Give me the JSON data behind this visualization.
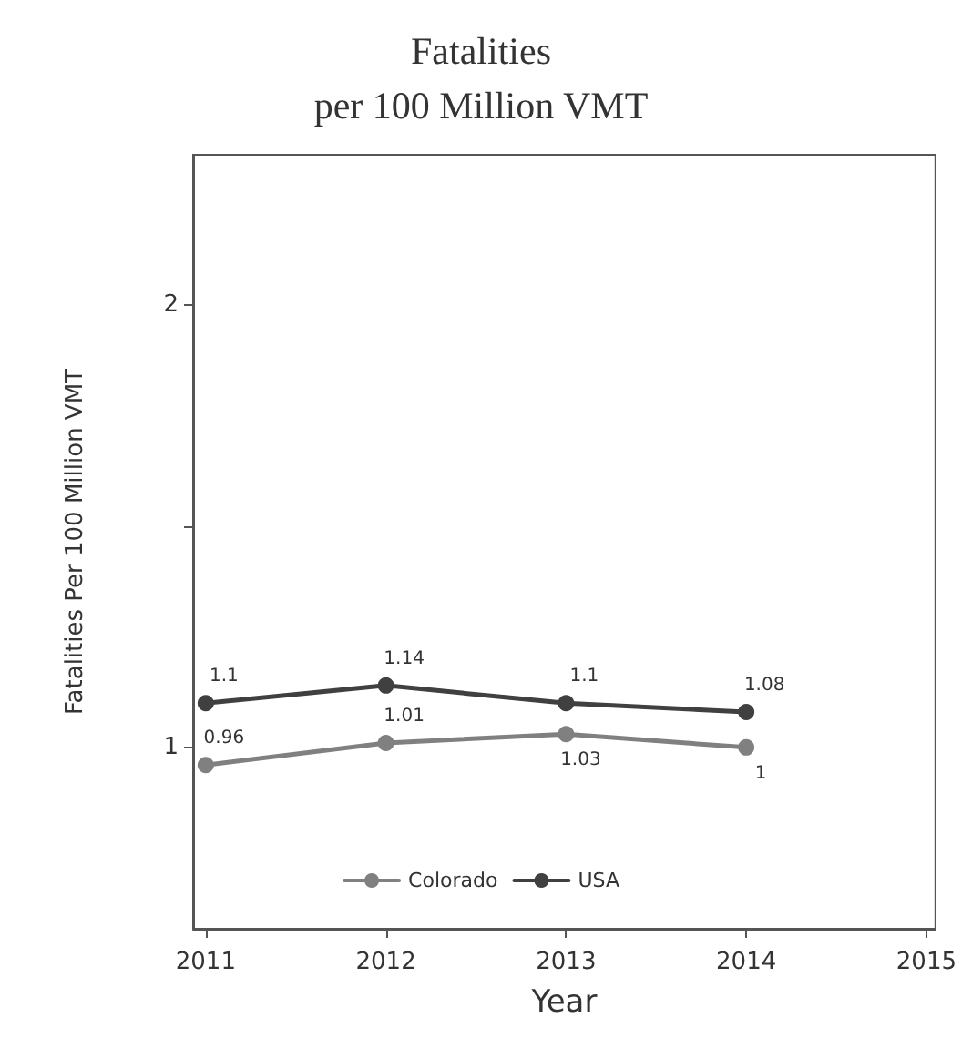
{
  "chart_data": {
    "type": "line",
    "title": "Fatalities\nper 100 Million VMT",
    "xlabel": "Year",
    "ylabel": "Fatalities Per 100 Million VMT",
    "x": [
      2011,
      2012,
      2013,
      2014
    ],
    "series": [
      {
        "name": "Colorado",
        "color": "#808080",
        "values": [
          0.96,
          1.01,
          1.03,
          1
        ]
      },
      {
        "name": "USA",
        "color": "#404040",
        "values": [
          1.1,
          1.14,
          1.1,
          1.08
        ]
      }
    ],
    "xlim": [
      2010.93,
      2015.05
    ],
    "xticks": [
      2011,
      2012,
      2013,
      2014,
      2015
    ],
    "ylim": [
      0.59,
      2.34
    ],
    "yticks": [
      1,
      {
        "value": 1.5,
        "label": null
      },
      2
    ],
    "data_labels": true,
    "legend": "bottom",
    "marker": "circle",
    "line_style": "solid",
    "grid": false
  }
}
